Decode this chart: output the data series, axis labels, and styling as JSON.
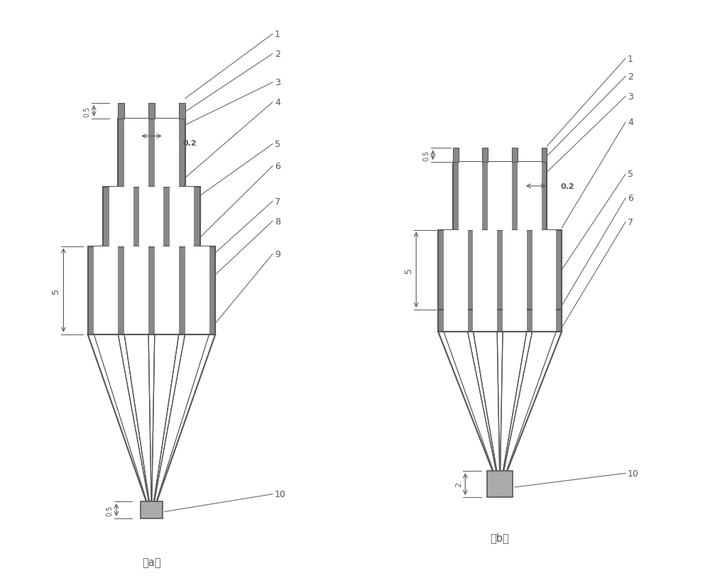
{
  "fig_width": 10.0,
  "fig_height": 8.29,
  "bg_color": "#ffffff",
  "line_color": "#555555",
  "wall_color": "#888888",
  "fill_color": "#ffffff",
  "gray_fill": "#aaaaaa",
  "label_a": "（a）",
  "label_b": "（b）",
  "dim_05_top": "0.5",
  "dim_02": "0.2",
  "dim_5": "5",
  "dim_05_bot": "0.5",
  "dim_2": "2"
}
